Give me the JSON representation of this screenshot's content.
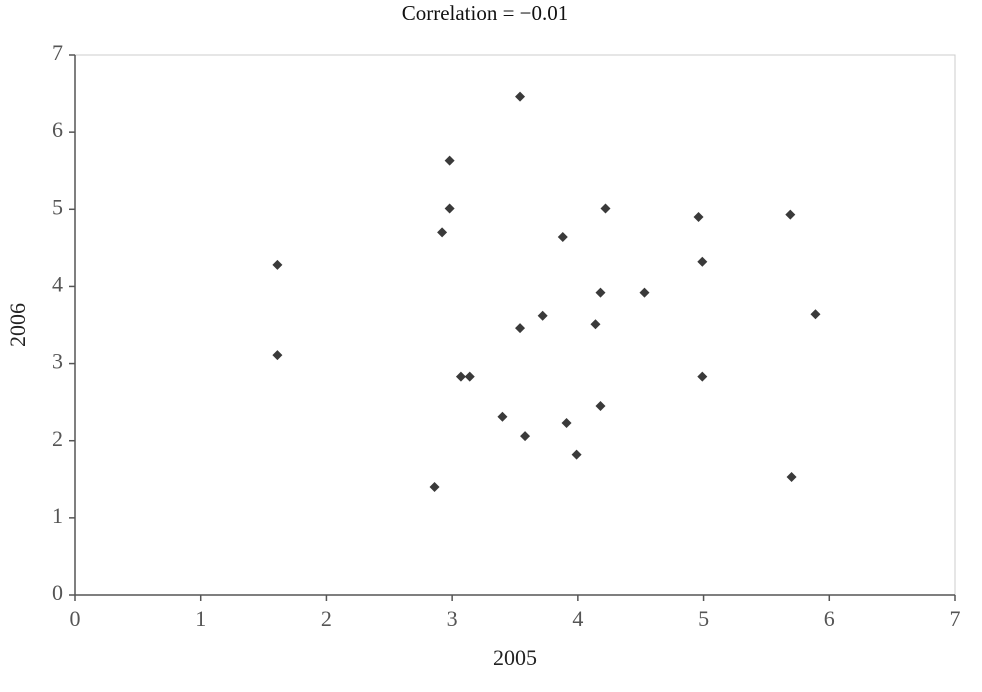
{
  "chart_data": {
    "type": "scatter",
    "title": "Correlation = −0.01",
    "x_label": "2005",
    "y_label": "2006",
    "color": "#3a3a3a",
    "x": [
      1.61,
      1.61,
      2.86,
      2.92,
      2.98,
      2.98,
      3.07,
      3.14,
      3.4,
      3.54,
      3.54,
      3.58,
      3.72,
      3.88,
      3.91,
      3.99,
      4.14,
      4.18,
      4.18,
      4.22,
      4.53,
      4.96,
      4.99,
      4.99,
      5.69,
      5.7,
      5.89
    ],
    "y": [
      4.28,
      3.11,
      1.4,
      4.7,
      5.63,
      5.01,
      2.83,
      2.83,
      2.31,
      6.46,
      3.46,
      2.06,
      3.62,
      4.64,
      2.23,
      1.82,
      3.51,
      3.92,
      2.45,
      5.01,
      3.92,
      4.9,
      4.32,
      2.83,
      4.93,
      1.53,
      3.64
    ],
    "xlim": [
      0,
      7
    ],
    "ylim": [
      0,
      7
    ],
    "xticks": [
      0,
      1,
      2,
      3,
      4,
      5,
      6,
      7
    ],
    "yticks": [
      0,
      1,
      2,
      3,
      4,
      5,
      6,
      7
    ]
  }
}
